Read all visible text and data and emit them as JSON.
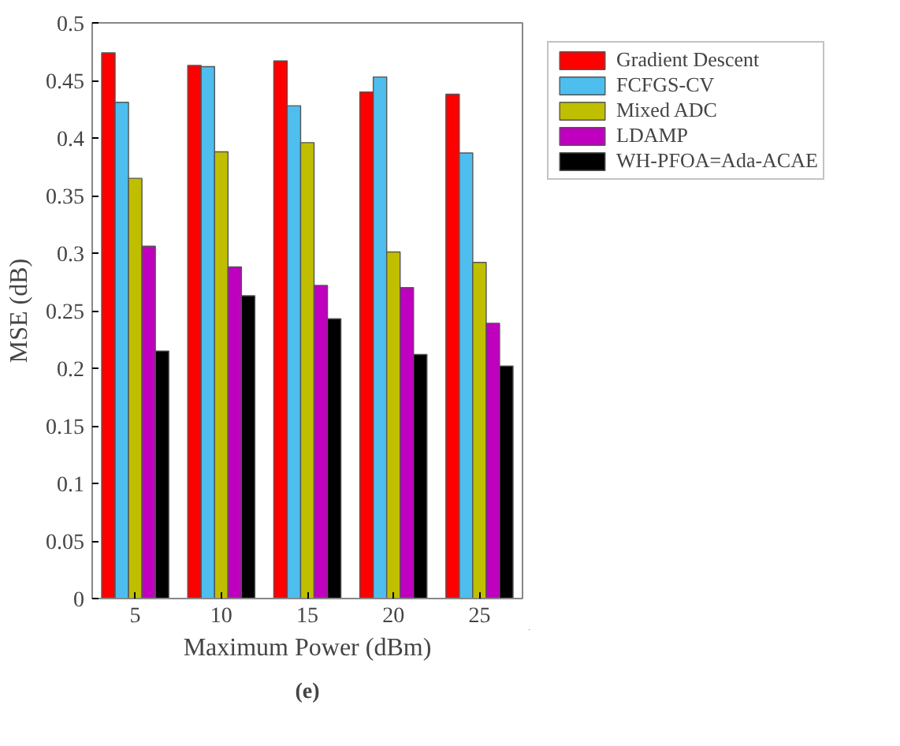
{
  "chart_data": {
    "type": "bar",
    "xlabel": "Maximum Power (dBm)",
    "ylabel": "MSE (dB)",
    "categories": [
      "5",
      "10",
      "15",
      "20",
      "25"
    ],
    "series": [
      {
        "name": "Gradient Descent",
        "color": "#ff0000",
        "values": [
          0.474,
          0.463,
          0.467,
          0.44,
          0.438
        ]
      },
      {
        "name": "FCFGS-CV",
        "color": "#4dbeee",
        "values": [
          0.431,
          0.462,
          0.428,
          0.453,
          0.387
        ]
      },
      {
        "name": "Mixed ADC",
        "color": "#bfbf00",
        "values": [
          0.365,
          0.388,
          0.396,
          0.301,
          0.292
        ]
      },
      {
        "name": "LDAMP",
        "color": "#bf00bf",
        "values": [
          0.306,
          0.288,
          0.272,
          0.27,
          0.239
        ]
      },
      {
        "name": "WH-PFOA=Ada-ACAE",
        "color": "#000000",
        "values": [
          0.215,
          0.263,
          0.243,
          0.212,
          0.202
        ]
      }
    ],
    "ylim": [
      0,
      0.5
    ],
    "yticks": [
      0,
      0.05,
      0.1,
      0.15,
      0.2,
      0.25,
      0.3,
      0.35,
      0.4,
      0.45,
      0.5
    ],
    "grid": false,
    "legend": "top right",
    "annotations": [
      "(e)"
    ]
  }
}
